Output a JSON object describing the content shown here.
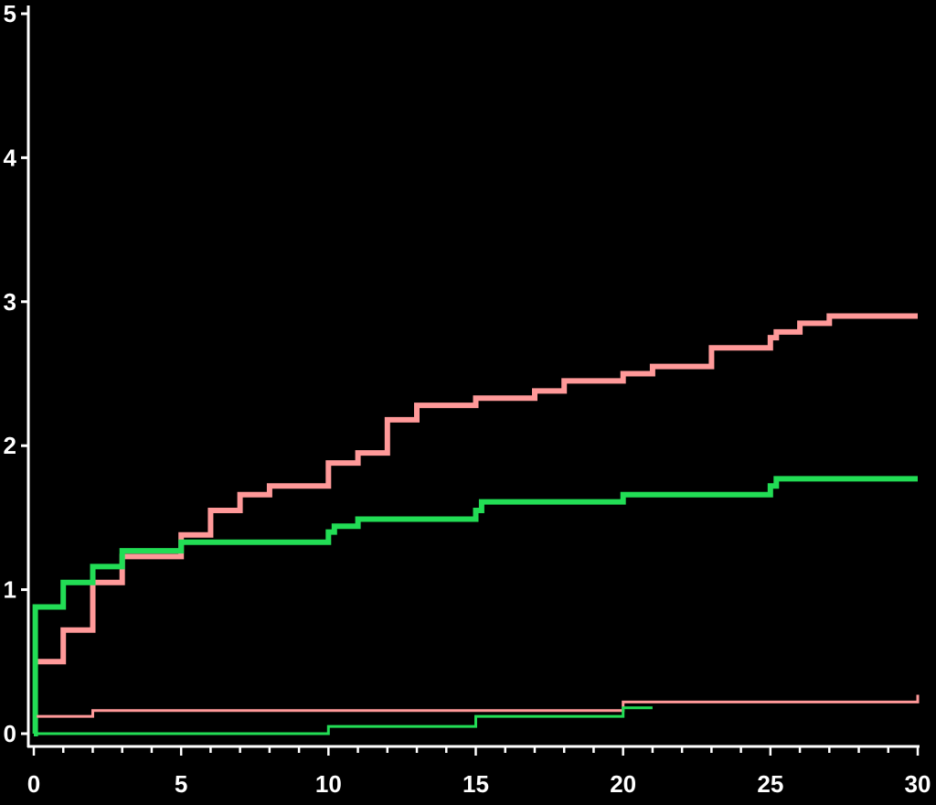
{
  "chart_data": {
    "type": "line",
    "title": "",
    "xlabel": "",
    "ylabel": "",
    "xlim": [
      0,
      30
    ],
    "ylim": [
      0,
      5
    ],
    "x_ticks": [
      0,
      5,
      10,
      15,
      20,
      25,
      30
    ],
    "x_tick_labels": [
      "0",
      "5",
      "10",
      "15",
      "20",
      "25",
      "30"
    ],
    "x_minor_step": 1,
    "y_ticks": [
      0,
      1,
      2,
      3,
      4,
      5
    ],
    "y_tick_labels": [
      "0",
      "1",
      "2",
      "3",
      "4",
      "5"
    ],
    "grid": false,
    "legend": "none",
    "background": "#000000",
    "axis_color": "#ffffff",
    "step": true,
    "series": [
      {
        "color": "#ff9999",
        "style": "thick",
        "x": [
          0,
          1,
          2,
          3,
          5,
          6,
          7,
          8,
          10,
          11,
          12,
          13,
          15,
          17,
          18,
          20,
          21,
          23,
          25,
          25.2,
          26,
          27,
          30
        ],
        "y": [
          0.5,
          0.72,
          1.05,
          1.23,
          1.38,
          1.55,
          1.66,
          1.72,
          1.88,
          1.95,
          2.18,
          2.28,
          2.33,
          2.38,
          2.45,
          2.5,
          2.55,
          2.68,
          2.75,
          2.79,
          2.85,
          2.9,
          2.9
        ]
      },
      {
        "color": "#22dd55",
        "style": "thick",
        "x": [
          0,
          0.05,
          1,
          2,
          3,
          5,
          10,
          10.2,
          11,
          15,
          15.2,
          20,
          25,
          25.2,
          30
        ],
        "y": [
          0,
          0.88,
          1.05,
          1.16,
          1.27,
          1.33,
          1.4,
          1.44,
          1.49,
          1.55,
          1.61,
          1.66,
          1.72,
          1.77,
          1.77
        ]
      },
      {
        "color": "#ff9999",
        "style": "thin",
        "x": [
          0.1,
          2,
          20,
          30,
          30
        ],
        "y": [
          0.12,
          0.16,
          0.22,
          0.22,
          0.27
        ]
      },
      {
        "color": "#22dd55",
        "style": "thin",
        "x": [
          0.1,
          10,
          15,
          20,
          21
        ],
        "y": [
          0,
          0.05,
          0.12,
          0.18,
          0.18
        ]
      }
    ]
  }
}
